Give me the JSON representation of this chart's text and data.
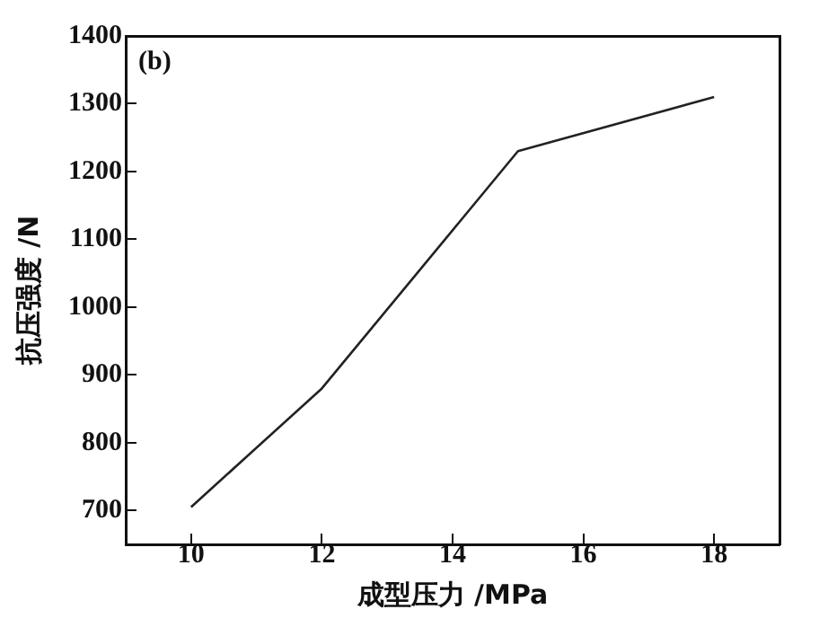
{
  "chart_data": {
    "type": "line",
    "xlabel": "成型压力 /MPa",
    "ylabel": "抗压强度 /N",
    "annotations": [
      "(b)"
    ],
    "x": [
      10,
      12,
      15,
      18
    ],
    "series": [
      {
        "color": "#222222",
        "values": [
          705,
          880,
          1230,
          1310
        ]
      }
    ],
    "xlim": [
      9,
      19
    ],
    "xticks": [
      10,
      12,
      14,
      16,
      18
    ],
    "ylim": [
      650,
      1400
    ],
    "yticks": [
      700,
      800,
      900,
      1000,
      1100,
      1200,
      1300,
      1400
    ],
    "grid": false,
    "legend": false,
    "marker": "none",
    "line_style": "solid"
  }
}
